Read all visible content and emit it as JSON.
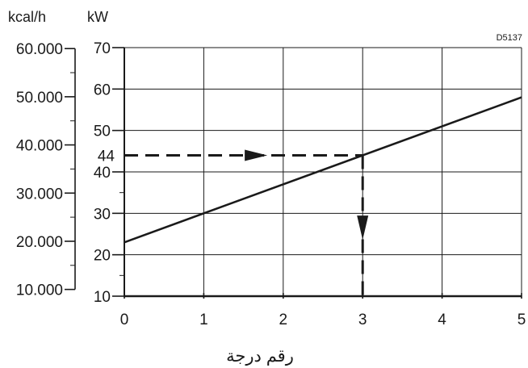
{
  "chart_data": {
    "type": "line",
    "code": "D5137",
    "xlabel": "رقم درجة",
    "x_ticks": [
      0,
      1,
      2,
      3,
      4,
      5
    ],
    "xlim": [
      0,
      5
    ],
    "y_primary": {
      "unit": "kW",
      "ylim": [
        10,
        70
      ],
      "ticks": [
        10,
        20,
        30,
        40,
        50,
        60,
        70
      ]
    },
    "y_secondary": {
      "unit": "kcal/h",
      "ticks": [
        {
          "value": 10000,
          "label": "10.000"
        },
        {
          "value": 20000,
          "label": "20.000"
        },
        {
          "value": 30000,
          "label": "30.000"
        },
        {
          "value": 40000,
          "label": "40.000"
        },
        {
          "value": 50000,
          "label": "50.000"
        },
        {
          "value": 60000,
          "label": "60.000"
        }
      ]
    },
    "series": [
      {
        "x": [
          0,
          5
        ],
        "y": [
          23,
          58
        ]
      }
    ],
    "annotation": {
      "y_value": 44,
      "y_label": "44",
      "x_value": 3
    },
    "grid": true,
    "colors": {
      "line": "#1a1a1a",
      "grid": "#1a1a1a"
    }
  }
}
